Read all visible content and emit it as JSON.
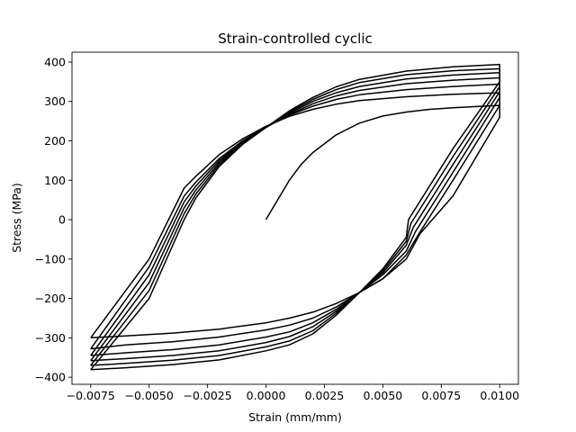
{
  "chart_data": {
    "type": "line",
    "title": "Strain-controlled cyclic",
    "xlabel": "Strain (mm/mm)",
    "ylabel": "Stress (MPa)",
    "xlim": [
      -0.0083,
      0.0108
    ],
    "ylim": [
      -418,
      425
    ],
    "xticks": [
      -0.0075,
      -0.005,
      -0.0025,
      0.0,
      0.0025,
      0.005,
      0.0075,
      0.01
    ],
    "xtick_labels": [
      "−0.0075",
      "−0.0050",
      "−0.0025",
      "0.0000",
      "0.0025",
      "0.0050",
      "0.0075",
      "0.0100"
    ],
    "yticks": [
      -400,
      -300,
      -200,
      -100,
      0,
      100,
      200,
      300,
      400
    ],
    "ytick_labels": [
      "−400",
      "−300",
      "−200",
      "−100",
      "0",
      "100",
      "200",
      "300",
      "400"
    ],
    "grid": false,
    "line_color": "#000000",
    "series": [
      {
        "x": [
          0.0,
          0.001,
          0.0015,
          0.002,
          0.003,
          0.004,
          0.005,
          0.006,
          0.007,
          0.008,
          0.009,
          0.01,
          0.01,
          0.008,
          0.0066,
          0.006,
          0.005,
          0.004,
          0.003,
          0.002,
          0.001,
          0.0,
          -0.002,
          -0.004,
          -0.006,
          -0.0075
        ],
        "y": [
          0,
          100,
          140,
          170,
          215,
          245,
          263,
          273,
          280,
          284,
          287,
          290,
          260,
          60,
          -35,
          -100,
          -150,
          -185,
          -213,
          -235,
          -250,
          -262,
          -278,
          -288,
          -295,
          -300
        ]
      },
      {
        "x": [
          -0.0075,
          -0.005,
          -0.0035,
          -0.003,
          -0.002,
          -0.001,
          0.0,
          0.001,
          0.002,
          0.003,
          0.004,
          0.006,
          0.008,
          0.01,
          0.01,
          0.008,
          0.0065,
          0.006,
          0.005,
          0.004,
          0.003,
          0.002,
          0.001,
          0.0,
          -0.002,
          -0.004,
          -0.006,
          -0.0075
        ],
        "y": [
          -300,
          -100,
          80,
          110,
          165,
          205,
          237,
          262,
          280,
          293,
          302,
          312,
          318,
          322,
          290,
          100,
          -40,
          -90,
          -150,
          -185,
          -222,
          -250,
          -268,
          -280,
          -298,
          -310,
          -318,
          -328
        ]
      },
      {
        "x": [
          -0.0075,
          -0.005,
          -0.0035,
          -0.003,
          -0.002,
          -0.001,
          0.0,
          0.001,
          0.002,
          0.003,
          0.004,
          0.006,
          0.008,
          0.01,
          0.01,
          0.008,
          0.0064,
          0.006,
          0.005,
          0.004,
          0.003,
          0.002,
          0.001,
          0.0,
          -0.002,
          -0.004,
          -0.006,
          -0.0075
        ],
        "y": [
          -328,
          -120,
          60,
          95,
          155,
          200,
          235,
          265,
          288,
          305,
          317,
          330,
          338,
          344,
          310,
          120,
          -30,
          -80,
          -140,
          -185,
          -228,
          -262,
          -285,
          -298,
          -318,
          -330,
          -338,
          -345
        ]
      },
      {
        "x": [
          -0.0075,
          -0.005,
          -0.0035,
          -0.003,
          -0.002,
          -0.001,
          0.0,
          0.001,
          0.002,
          0.003,
          0.004,
          0.006,
          0.008,
          0.01,
          0.01,
          0.008,
          0.0063,
          0.006,
          0.005,
          0.004,
          0.003,
          0.002,
          0.001,
          0.0,
          -0.002,
          -0.004,
          -0.006,
          -0.0075
        ],
        "y": [
          -345,
          -140,
          45,
          85,
          150,
          197,
          234,
          267,
          294,
          314,
          328,
          345,
          354,
          360,
          325,
          140,
          -20,
          -65,
          -135,
          -185,
          -233,
          -272,
          -297,
          -312,
          -333,
          -345,
          -353,
          -358
        ]
      },
      {
        "x": [
          -0.0075,
          -0.005,
          -0.0035,
          -0.003,
          -0.002,
          -0.001,
          0.0,
          0.001,
          0.002,
          0.003,
          0.004,
          0.006,
          0.008,
          0.01,
          0.01,
          0.008,
          0.0062,
          0.006,
          0.005,
          0.004,
          0.003,
          0.002,
          0.001,
          0.0,
          -0.002,
          -0.004,
          -0.006,
          -0.0075
        ],
        "y": [
          -358,
          -160,
          30,
          75,
          145,
          195,
          234,
          270,
          300,
          322,
          338,
          357,
          367,
          373,
          338,
          160,
          -10,
          -55,
          -130,
          -185,
          -238,
          -282,
          -308,
          -323,
          -345,
          -357,
          -365,
          -370
        ]
      },
      {
        "x": [
          -0.0075,
          -0.005,
          -0.0035,
          -0.003,
          -0.002,
          -0.001,
          0.0,
          0.001,
          0.002,
          0.003,
          0.004,
          0.006,
          0.008,
          0.01,
          0.01,
          0.008,
          0.0061,
          0.006,
          0.005,
          0.004,
          0.003,
          0.002,
          0.001,
          0.0,
          -0.002,
          -0.004,
          -0.006,
          -0.0075
        ],
        "y": [
          -370,
          -180,
          15,
          65,
          140,
          193,
          234,
          273,
          305,
          330,
          348,
          368,
          378,
          383,
          350,
          180,
          0,
          -45,
          -125,
          -185,
          -243,
          -290,
          -318,
          -333,
          -356,
          -368,
          -376,
          -381
        ]
      },
      {
        "x": [
          -0.0075,
          -0.005,
          -0.0035,
          -0.003,
          -0.002,
          -0.001,
          0.0,
          0.001,
          0.002,
          0.003,
          0.004,
          0.006,
          0.008,
          0.01,
          0.01
        ],
        "y": [
          -381,
          -200,
          0,
          55,
          135,
          191,
          234,
          276,
          310,
          337,
          356,
          377,
          388,
          394,
          360
        ]
      }
    ]
  }
}
